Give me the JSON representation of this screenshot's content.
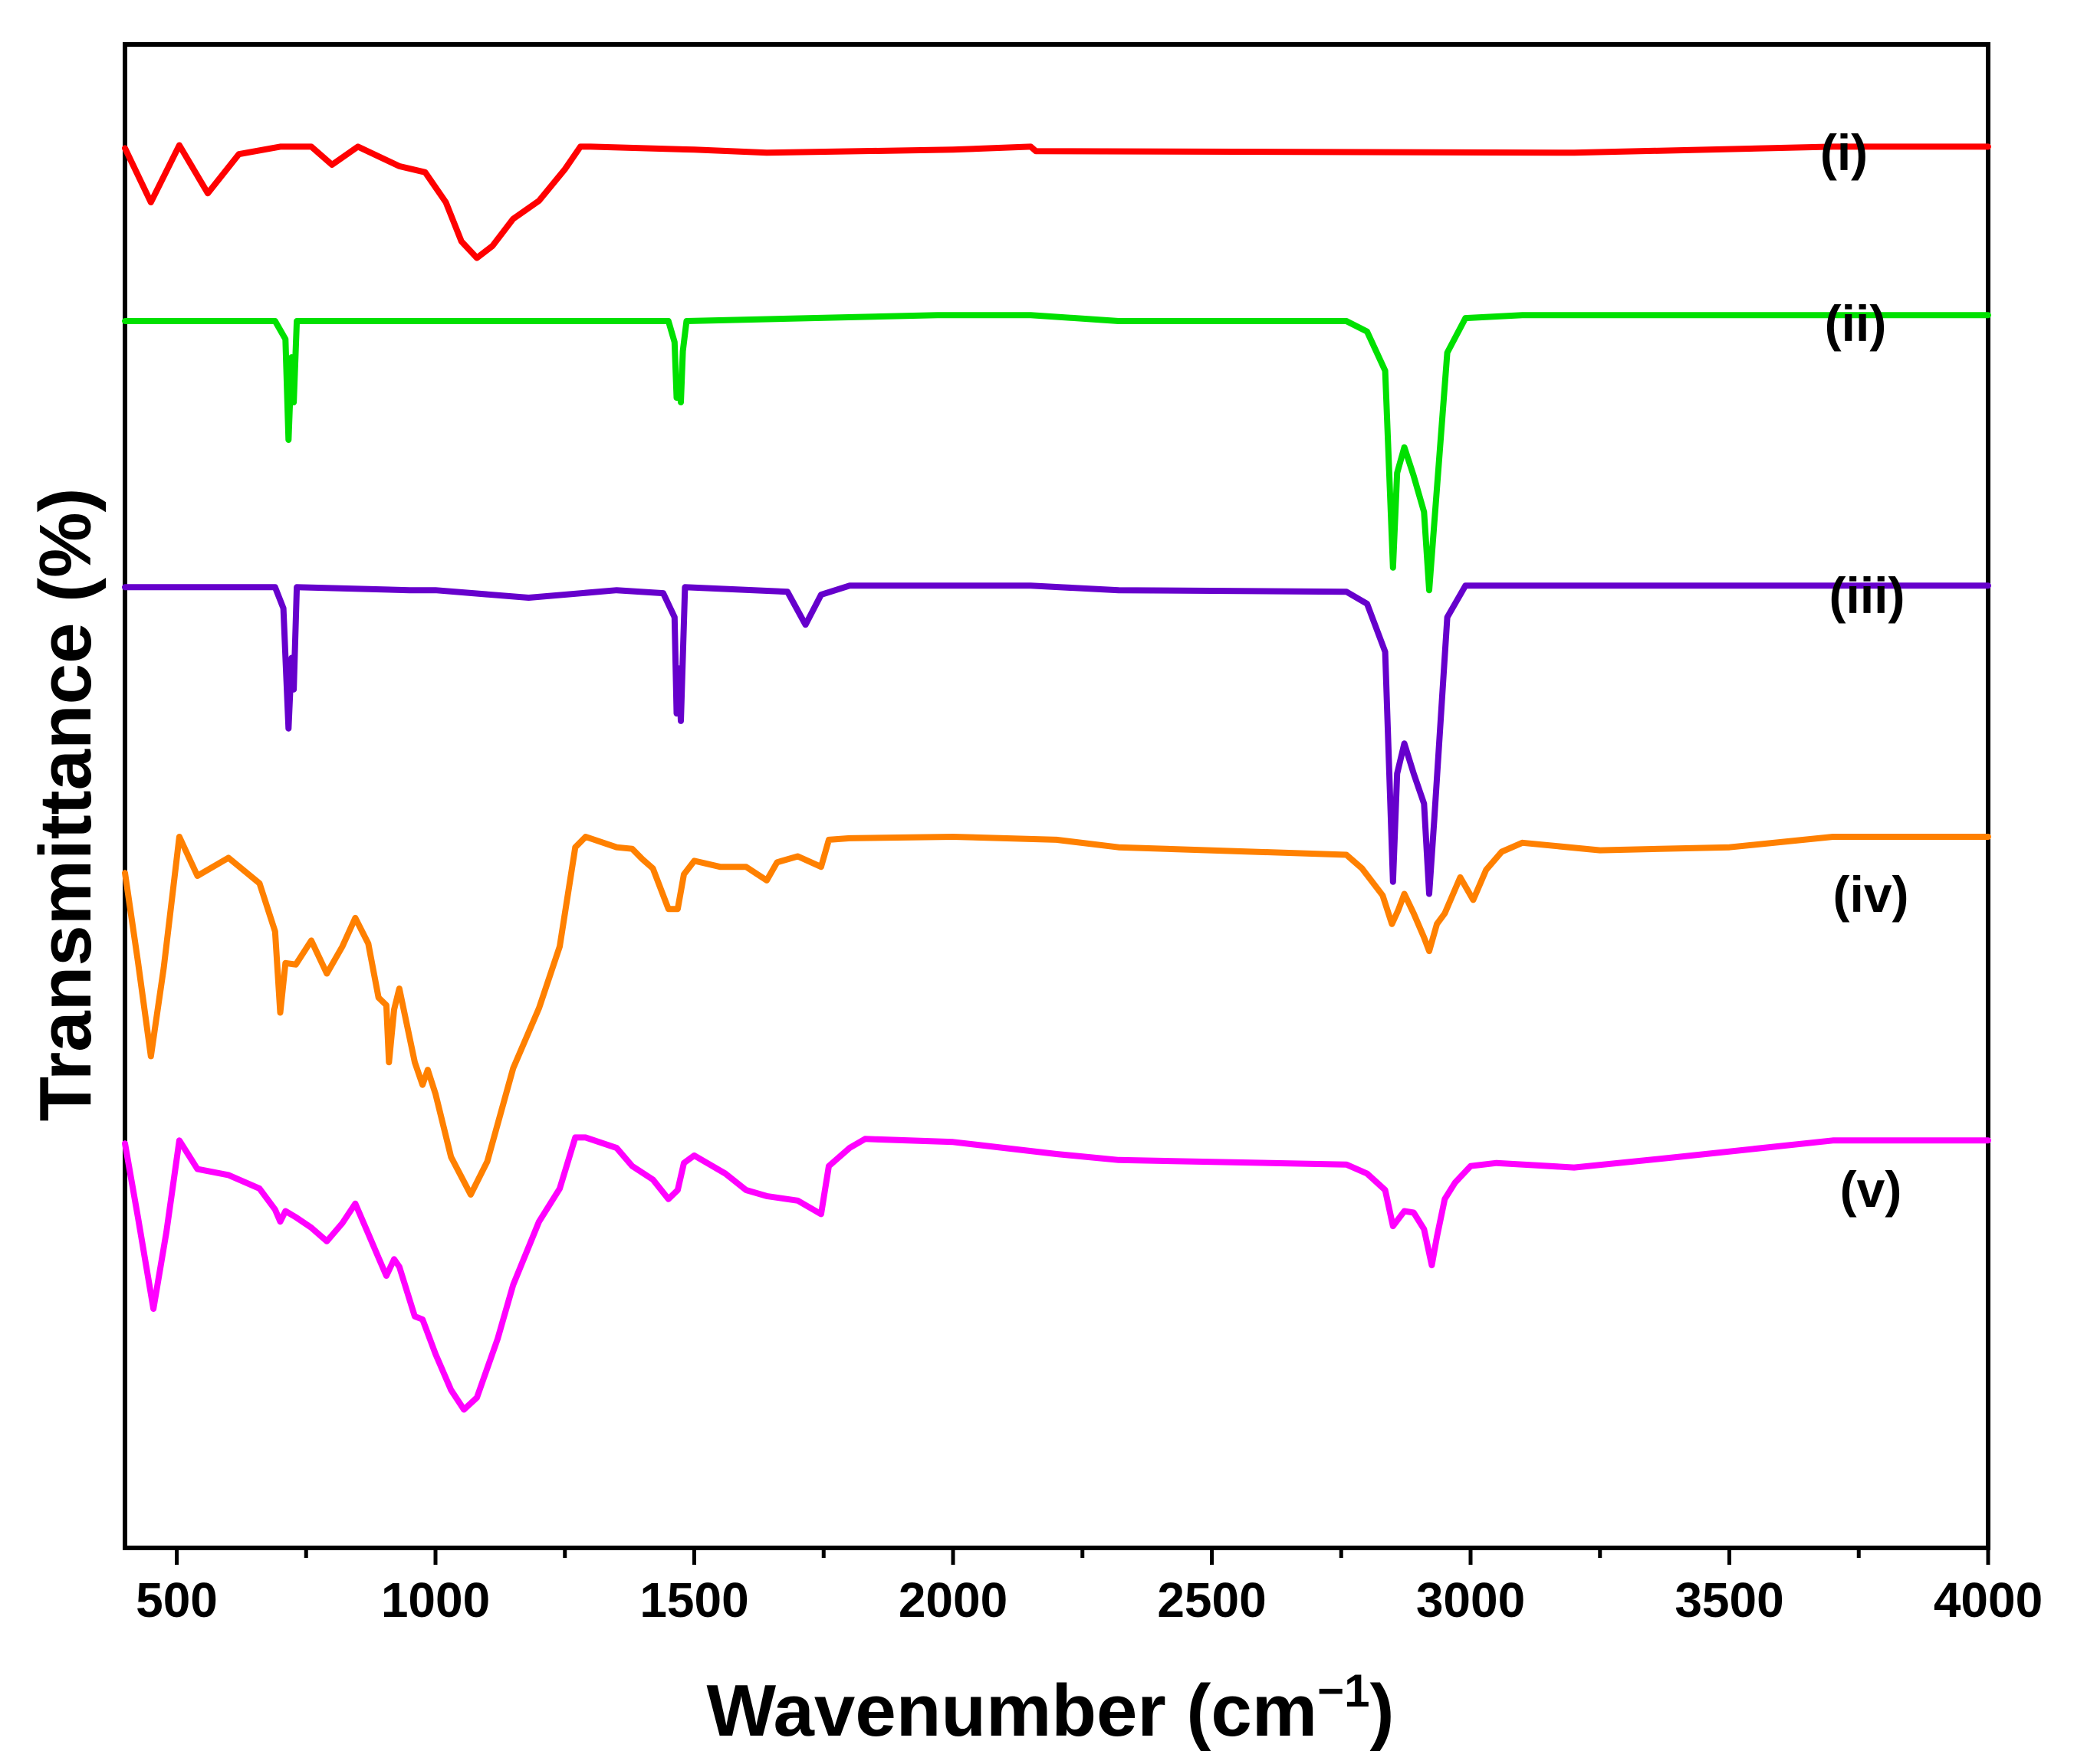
{
  "chart_data": {
    "type": "line",
    "title": "",
    "xlabel": "Wavenumber (cm",
    "xlabel_sup": "−1",
    "xlabel_close": ")",
    "ylabel": "Transmittance (%)",
    "xlim": [
      400,
      4000
    ],
    "ylim": [
      0,
      100
    ],
    "y_ticks_shown": false,
    "grid": false,
    "x_ticks": [
      500,
      1000,
      1500,
      2000,
      2500,
      3000,
      3500,
      4000
    ],
    "x_tick_labels": [
      "500",
      "1000",
      "1500",
      "2000",
      "2500",
      "3000",
      "3500",
      "4000"
    ],
    "series": [
      {
        "name": "(i)",
        "color": "#ff0000",
        "points": [
          [
            400,
            93.1
          ],
          [
            450,
            89.5
          ],
          [
            505,
            93.3
          ],
          [
            560,
            90.1
          ],
          [
            620,
            92.7
          ],
          [
            700,
            93.2
          ],
          [
            760,
            93.2
          ],
          [
            800,
            92.0
          ],
          [
            850,
            93.2
          ],
          [
            930,
            91.9
          ],
          [
            980,
            91.5
          ],
          [
            1020,
            89.5
          ],
          [
            1050,
            86.9
          ],
          [
            1080,
            85.8
          ],
          [
            1110,
            86.6
          ],
          [
            1150,
            88.4
          ],
          [
            1200,
            89.6
          ],
          [
            1250,
            91.7
          ],
          [
            1280,
            93.2
          ],
          [
            1300,
            93.2
          ],
          [
            1500,
            93.0
          ],
          [
            1640,
            92.8
          ],
          [
            2000,
            93.0
          ],
          [
            2150,
            93.2
          ],
          [
            2160,
            92.9
          ],
          [
            3200,
            92.8
          ],
          [
            3700,
            93.2
          ],
          [
            4000,
            93.2
          ]
        ]
      },
      {
        "name": "(ii)",
        "color": "#00e000",
        "points": [
          [
            400,
            81.6
          ],
          [
            690,
            81.6
          ],
          [
            710,
            80.4
          ],
          [
            716,
            73.7
          ],
          [
            722,
            79.2
          ],
          [
            726,
            76.2
          ],
          [
            732,
            81.6
          ],
          [
            1450,
            81.6
          ],
          [
            1462,
            80.2
          ],
          [
            1466,
            76.5
          ],
          [
            1470,
            77.5
          ],
          [
            1474,
            76.2
          ],
          [
            1478,
            79.6
          ],
          [
            1485,
            81.6
          ],
          [
            1970,
            82.0
          ],
          [
            2150,
            82.0
          ],
          [
            2320,
            81.6
          ],
          [
            2760,
            81.6
          ],
          [
            2800,
            80.9
          ],
          [
            2835,
            78.3
          ],
          [
            2850,
            65.2
          ],
          [
            2858,
            71.5
          ],
          [
            2872,
            73.2
          ],
          [
            2890,
            71.3
          ],
          [
            2910,
            68.9
          ],
          [
            2920,
            63.7
          ],
          [
            2930,
            68.2
          ],
          [
            2955,
            79.5
          ],
          [
            2990,
            81.8
          ],
          [
            3100,
            82.0
          ],
          [
            4000,
            82.0
          ]
        ]
      },
      {
        "name": "(iii)",
        "color": "#6600cc",
        "points": [
          [
            400,
            63.9
          ],
          [
            690,
            63.9
          ],
          [
            706,
            62.5
          ],
          [
            716,
            54.5
          ],
          [
            722,
            59.2
          ],
          [
            726,
            57.1
          ],
          [
            732,
            63.9
          ],
          [
            950,
            63.7
          ],
          [
            1000,
            63.7
          ],
          [
            1180,
            63.2
          ],
          [
            1350,
            63.7
          ],
          [
            1440,
            63.5
          ],
          [
            1462,
            61.9
          ],
          [
            1466,
            55.5
          ],
          [
            1470,
            58.5
          ],
          [
            1474,
            55.0
          ],
          [
            1482,
            63.9
          ],
          [
            1680,
            63.6
          ],
          [
            1715,
            61.4
          ],
          [
            1745,
            63.4
          ],
          [
            1800,
            64.0
          ],
          [
            2150,
            64.0
          ],
          [
            2320,
            63.7
          ],
          [
            2760,
            63.6
          ],
          [
            2800,
            62.8
          ],
          [
            2835,
            59.6
          ],
          [
            2850,
            44.3
          ],
          [
            2858,
            51.5
          ],
          [
            2872,
            53.5
          ],
          [
            2890,
            51.5
          ],
          [
            2910,
            49.5
          ],
          [
            2920,
            43.5
          ],
          [
            2930,
            48.5
          ],
          [
            2955,
            61.9
          ],
          [
            2990,
            64.0
          ],
          [
            4000,
            64.0
          ]
        ]
      },
      {
        "name": "(iv)",
        "color": "#ff8000",
        "points": [
          [
            400,
            44.9
          ],
          [
            425,
            39.0
          ],
          [
            450,
            32.7
          ],
          [
            475,
            38.6
          ],
          [
            505,
            47.3
          ],
          [
            540,
            44.7
          ],
          [
            600,
            45.9
          ],
          [
            660,
            44.2
          ],
          [
            690,
            41.0
          ],
          [
            700,
            35.6
          ],
          [
            710,
            38.9
          ],
          [
            730,
            38.8
          ],
          [
            760,
            40.4
          ],
          [
            790,
            38.2
          ],
          [
            820,
            40.0
          ],
          [
            845,
            41.9
          ],
          [
            870,
            40.2
          ],
          [
            890,
            36.6
          ],
          [
            905,
            36.1
          ],
          [
            910,
            32.3
          ],
          [
            920,
            35.8
          ],
          [
            930,
            37.2
          ],
          [
            960,
            32.3
          ],
          [
            975,
            30.8
          ],
          [
            985,
            31.8
          ],
          [
            1000,
            30.2
          ],
          [
            1030,
            26.0
          ],
          [
            1068,
            23.5
          ],
          [
            1100,
            25.7
          ],
          [
            1150,
            31.9
          ],
          [
            1200,
            35.9
          ],
          [
            1240,
            40.0
          ],
          [
            1270,
            46.6
          ],
          [
            1290,
            47.3
          ],
          [
            1350,
            46.6
          ],
          [
            1380,
            46.5
          ],
          [
            1400,
            45.8
          ],
          [
            1420,
            45.2
          ],
          [
            1450,
            42.5
          ],
          [
            1468,
            42.5
          ],
          [
            1480,
            44.8
          ],
          [
            1500,
            45.7
          ],
          [
            1550,
            45.3
          ],
          [
            1600,
            45.3
          ],
          [
            1640,
            44.4
          ],
          [
            1660,
            45.6
          ],
          [
            1700,
            46.0
          ],
          [
            1745,
            45.3
          ],
          [
            1760,
            47.1
          ],
          [
            1800,
            47.2
          ],
          [
            2000,
            47.3
          ],
          [
            2200,
            47.1
          ],
          [
            2320,
            46.6
          ],
          [
            2760,
            46.1
          ],
          [
            2790,
            45.2
          ],
          [
            2830,
            43.4
          ],
          [
            2848,
            41.5
          ],
          [
            2860,
            42.4
          ],
          [
            2872,
            43.5
          ],
          [
            2890,
            42.2
          ],
          [
            2910,
            40.6
          ],
          [
            2920,
            39.7
          ],
          [
            2935,
            41.5
          ],
          [
            2950,
            42.2
          ],
          [
            2980,
            44.6
          ],
          [
            3005,
            43.1
          ],
          [
            3030,
            45.1
          ],
          [
            3060,
            46.3
          ],
          [
            3100,
            46.9
          ],
          [
            3250,
            46.4
          ],
          [
            3500,
            46.6
          ],
          [
            3700,
            47.3
          ],
          [
            4000,
            47.3
          ]
        ]
      },
      {
        "name": "(v)",
        "color": "#ff00ff",
        "points": [
          [
            400,
            26.9
          ],
          [
            425,
            22.0
          ],
          [
            455,
            15.9
          ],
          [
            480,
            21.0
          ],
          [
            505,
            27.1
          ],
          [
            540,
            25.2
          ],
          [
            600,
            24.8
          ],
          [
            660,
            23.9
          ],
          [
            690,
            22.5
          ],
          [
            700,
            21.7
          ],
          [
            710,
            22.4
          ],
          [
            730,
            22.0
          ],
          [
            760,
            21.3
          ],
          [
            790,
            20.4
          ],
          [
            820,
            21.6
          ],
          [
            845,
            22.9
          ],
          [
            870,
            20.9
          ],
          [
            890,
            19.3
          ],
          [
            905,
            18.1
          ],
          [
            920,
            19.2
          ],
          [
            930,
            18.7
          ],
          [
            960,
            15.4
          ],
          [
            975,
            15.2
          ],
          [
            1000,
            12.9
          ],
          [
            1030,
            10.5
          ],
          [
            1055,
            9.2
          ],
          [
            1080,
            10.0
          ],
          [
            1120,
            13.9
          ],
          [
            1150,
            17.5
          ],
          [
            1200,
            21.7
          ],
          [
            1240,
            23.9
          ],
          [
            1270,
            27.3
          ],
          [
            1290,
            27.3
          ],
          [
            1350,
            26.6
          ],
          [
            1380,
            25.4
          ],
          [
            1420,
            24.5
          ],
          [
            1450,
            23.2
          ],
          [
            1468,
            23.8
          ],
          [
            1480,
            25.6
          ],
          [
            1500,
            26.1
          ],
          [
            1560,
            24.9
          ],
          [
            1600,
            23.8
          ],
          [
            1640,
            23.4
          ],
          [
            1700,
            23.1
          ],
          [
            1745,
            22.2
          ],
          [
            1760,
            25.4
          ],
          [
            1800,
            26.6
          ],
          [
            1830,
            27.2
          ],
          [
            2000,
            27.0
          ],
          [
            2200,
            26.2
          ],
          [
            2320,
            25.8
          ],
          [
            2760,
            25.5
          ],
          [
            2800,
            24.9
          ],
          [
            2835,
            23.8
          ],
          [
            2850,
            21.4
          ],
          [
            2872,
            22.4
          ],
          [
            2890,
            22.3
          ],
          [
            2910,
            21.2
          ],
          [
            2925,
            18.8
          ],
          [
            2935,
            20.7
          ],
          [
            2950,
            23.2
          ],
          [
            2970,
            24.3
          ],
          [
            3000,
            25.4
          ],
          [
            3050,
            25.6
          ],
          [
            3200,
            25.3
          ],
          [
            3400,
            26.0
          ],
          [
            3700,
            27.1
          ],
          [
            4000,
            27.1
          ]
        ]
      }
    ]
  }
}
